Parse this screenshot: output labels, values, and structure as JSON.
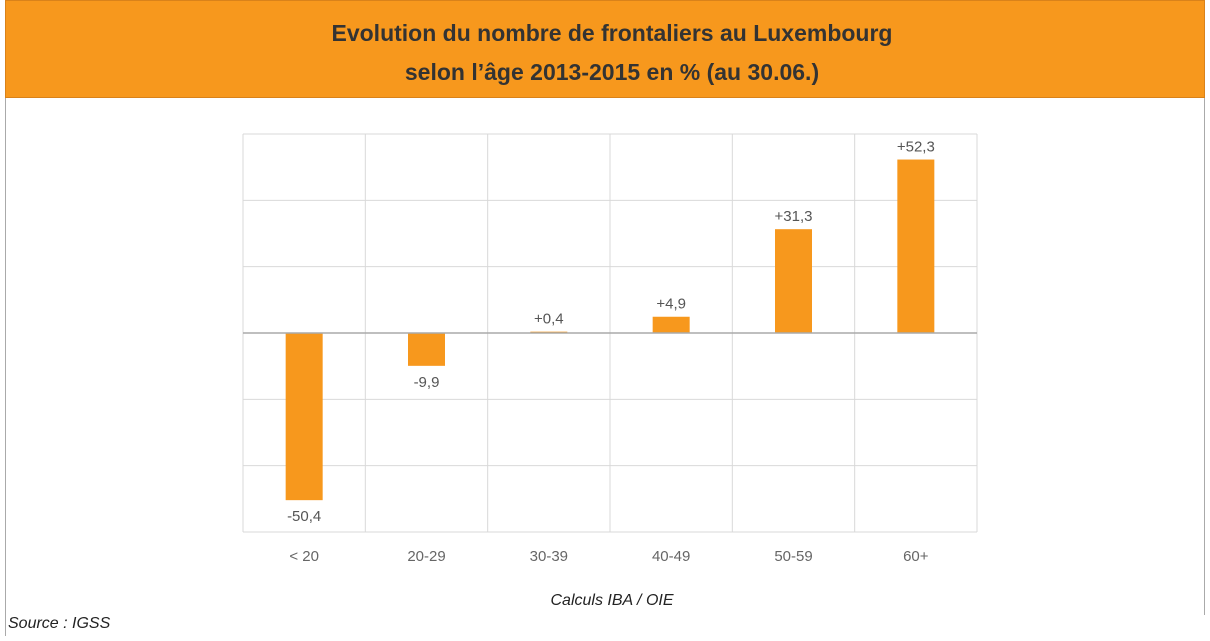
{
  "chart_data": {
    "type": "bar",
    "title": [
      "Evolution du nombre de frontaliers au Luxembourg",
      "selon l’âge 2013-2015 en % (au 30.06.)"
    ],
    "categories": [
      "< 20",
      "20-29",
      "30-39",
      "40-49",
      "50-59",
      "60+"
    ],
    "values": [
      -50.4,
      -9.9,
      0.4,
      4.9,
      31.3,
      52.3
    ],
    "value_labels": [
      "-50,4",
      "-9,9",
      "+0,4",
      "+4,9",
      "+31,3",
      "+52,3"
    ],
    "color": "#f7981d",
    "ylim": [
      -60,
      60
    ],
    "yticks": [
      -60,
      -40,
      -20,
      0,
      20,
      40,
      60
    ],
    "grid": true,
    "annotations": [
      "Calculs IBA / OIE",
      "Source : IGSS"
    ]
  }
}
